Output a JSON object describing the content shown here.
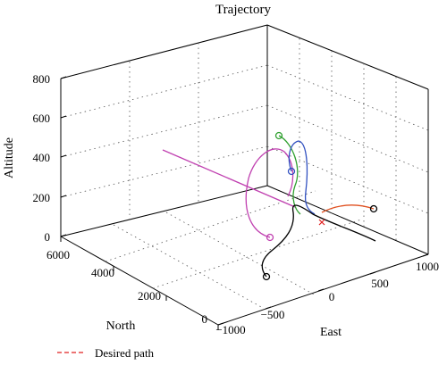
{
  "chart_data": {
    "type": "line3d",
    "title": "Trajectory",
    "axes": {
      "z": {
        "label": "Altitude",
        "range": [
          0,
          800
        ],
        "ticks": [
          "0",
          "200",
          "400",
          "600",
          "800"
        ]
      },
      "north": {
        "label": "North",
        "range": [
          0,
          6000
        ],
        "ticks": [
          "0",
          "2000",
          "4000",
          "6000"
        ]
      },
      "east": {
        "label": "East",
        "range": [
          -1000,
          1000
        ],
        "ticks": [
          "−1000",
          "−500",
          "0",
          "500",
          "1000"
        ]
      }
    },
    "grid": true,
    "legend": {
      "placement": "bottom-left",
      "entries": [
        "Desired path"
      ]
    },
    "series": [
      {
        "key": "magenta",
        "color": "#c040b0"
      },
      {
        "key": "green",
        "color": "#30a030"
      },
      {
        "key": "blue",
        "color": "#3050c0"
      },
      {
        "key": "black",
        "color": "#000000"
      },
      {
        "key": "orange",
        "color": "#e05020"
      },
      {
        "key": "desired",
        "color": "#e02020"
      }
    ]
  }
}
